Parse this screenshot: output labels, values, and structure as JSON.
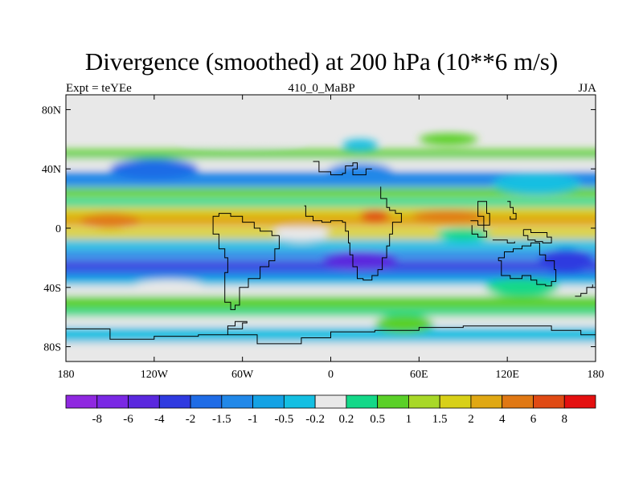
{
  "chart_data": {
    "type": "heatmap",
    "title": "Divergence (smoothed) at 200 hPa (10**6 m/s)",
    "left_string": "Expt = teYEe",
    "center_string": "410_0_MaBP",
    "right_string": "JJA",
    "x_ticks": [
      {
        "value": -180,
        "label": "180"
      },
      {
        "value": -120,
        "label": "120W"
      },
      {
        "value": -60,
        "label": "60W"
      },
      {
        "value": 0,
        "label": "0"
      },
      {
        "value": 60,
        "label": "60E"
      },
      {
        "value": 120,
        "label": "120E"
      },
      {
        "value": 180,
        "label": "180"
      }
    ],
    "y_ticks": [
      {
        "value": 80,
        "label": "80N"
      },
      {
        "value": 40,
        "label": "40N"
      },
      {
        "value": 0,
        "label": "0"
      },
      {
        "value": -40,
        "label": "40S"
      },
      {
        "value": -80,
        "label": "80S"
      }
    ],
    "xlim": [
      -180,
      180
    ],
    "ylim": [
      -90,
      90
    ],
    "colorbar": {
      "colors": [
        "#8f28e0",
        "#7a28e4",
        "#5a28de",
        "#2f3ae0",
        "#1f6ce6",
        "#2188e8",
        "#14a2e4",
        "#14bfe2",
        "#e8e8e8",
        "#14d888",
        "#5ad028",
        "#a8d828",
        "#d8d018",
        "#e0a814",
        "#e07814",
        "#e04a14",
        "#e41010"
      ],
      "labels": [
        "-8",
        "-6",
        "-4",
        "-2",
        "-1.5",
        "-1",
        "-0.5",
        "-0.2",
        "0.2",
        "0.5",
        "1",
        "1.5",
        "2",
        "4",
        "6",
        "8"
      ]
    },
    "bands": [
      {
        "lat": 81,
        "height": 16,
        "color": "#e8e8e8"
      },
      {
        "lat": 50,
        "height": 6,
        "color": "#5ad028"
      },
      {
        "lat": 44,
        "height": 6,
        "color": "#e8e8e8"
      },
      {
        "lat": 33,
        "height": 10,
        "color": "#2188e8"
      },
      {
        "lat": 24,
        "height": 6,
        "color": "#5ad028"
      },
      {
        "lat": 17,
        "height": 5,
        "color": "#14d888"
      },
      {
        "lat": 11,
        "height": 5,
        "color": "#d8d018"
      },
      {
        "lat": 5,
        "height": 8,
        "color": "#e0a814"
      },
      {
        "lat": -4,
        "height": 6,
        "color": "#d8d018"
      },
      {
        "lat": -11,
        "height": 6,
        "color": "#14bfe2"
      },
      {
        "lat": -18,
        "height": 6,
        "color": "#2188e8"
      },
      {
        "lat": -25,
        "height": 6,
        "color": "#2f3ae0"
      },
      {
        "lat": -31,
        "height": 5,
        "color": "#1f6ce6"
      },
      {
        "lat": -36,
        "height": 5,
        "color": "#14bfe2"
      },
      {
        "lat": -42,
        "height": 6,
        "color": "#e8e8e8"
      },
      {
        "lat": -50,
        "height": 8,
        "color": "#5ad028"
      },
      {
        "lat": -57,
        "height": 5,
        "color": "#14d888"
      },
      {
        "lat": -63,
        "height": 6,
        "color": "#e8e8e8"
      },
      {
        "lat": -72,
        "height": 10,
        "color": "#14bfe2"
      },
      {
        "lat": -82,
        "height": 10,
        "color": "#e8e8e8"
      }
    ],
    "blobs": [
      {
        "lon": 20,
        "lat": 38,
        "rlon": 22,
        "rlat": 6,
        "color": "#2188e8"
      },
      {
        "lon": -120,
        "lat": 40,
        "rlon": 30,
        "rlat": 7,
        "color": "#1f6ce6"
      },
      {
        "lon": 140,
        "lat": 30,
        "rlon": 30,
        "rlat": 7,
        "color": "#14bfe2"
      },
      {
        "lon": 30,
        "lat": 8,
        "rlon": 10,
        "rlat": 4,
        "color": "#e04a14"
      },
      {
        "lon": -150,
        "lat": 5,
        "rlon": 20,
        "rlat": 5,
        "color": "#e07814"
      },
      {
        "lon": 80,
        "lat": 8,
        "rlon": 25,
        "rlat": 4,
        "color": "#e07814"
      },
      {
        "lon": 20,
        "lat": -22,
        "rlon": 25,
        "rlat": 6,
        "color": "#5a28de"
      },
      {
        "lon": 160,
        "lat": -22,
        "rlon": 18,
        "rlat": 8,
        "color": "#2f3ae0"
      },
      {
        "lon": -20,
        "lat": -4,
        "rlon": 18,
        "rlat": 5,
        "color": "#e8e8e8"
      },
      {
        "lon": 90,
        "lat": -4,
        "rlon": 18,
        "rlat": 4,
        "color": "#14d888"
      },
      {
        "lon": -110,
        "lat": -40,
        "rlon": 25,
        "rlat": 5,
        "color": "#e8e8e8"
      },
      {
        "lon": 130,
        "lat": -40,
        "rlon": 25,
        "rlat": 6,
        "color": "#14d888"
      },
      {
        "lon": 50,
        "lat": -65,
        "rlon": 20,
        "rlat": 6,
        "color": "#5ad028"
      },
      {
        "lon": -60,
        "lat": 60,
        "rlon": 40,
        "rlat": 5,
        "color": "#e8e8e8"
      },
      {
        "lon": 80,
        "lat": 60,
        "rlon": 20,
        "rlat": 4,
        "color": "#5ad028"
      },
      {
        "lon": 20,
        "lat": 56,
        "rlon": 12,
        "rlat": 4,
        "color": "#14bfe2"
      }
    ],
    "coastlines": [
      [
        [
          -12,
          45
        ],
        [
          -8,
          38
        ],
        [
          0,
          36
        ],
        [
          8,
          37
        ],
        [
          10,
          42
        ],
        [
          15,
          44
        ],
        [
          18,
          40
        ],
        [
          15,
          36
        ],
        [
          22,
          36
        ],
        [
          24,
          40
        ],
        [
          28,
          40
        ]
      ],
      [
        [
          -18,
          15
        ],
        [
          -17,
          8
        ],
        [
          -12,
          5
        ],
        [
          -6,
          4
        ],
        [
          0,
          5
        ],
        [
          8,
          4
        ],
        [
          10,
          -2
        ],
        [
          12,
          -10
        ],
        [
          13,
          -18
        ],
        [
          15,
          -26
        ],
        [
          18,
          -34
        ],
        [
          22,
          -35
        ],
        [
          28,
          -32
        ],
        [
          32,
          -28
        ],
        [
          35,
          -20
        ],
        [
          38,
          -12
        ],
        [
          40,
          -4
        ],
        [
          42,
          4
        ],
        [
          48,
          10
        ],
        [
          44,
          12
        ],
        [
          40,
          14
        ],
        [
          38,
          20
        ],
        [
          34,
          28
        ]
      ],
      [
        [
          -35,
          -5
        ],
        [
          -40,
          -2
        ],
        [
          -48,
          0
        ],
        [
          -52,
          4
        ],
        [
          -60,
          8
        ],
        [
          -68,
          10
        ],
        [
          -76,
          8
        ],
        [
          -80,
          2
        ],
        [
          -80,
          -4
        ],
        [
          -76,
          -14
        ],
        [
          -72,
          -20
        ],
        [
          -70,
          -30
        ],
        [
          -72,
          -40
        ],
        [
          -72,
          -50
        ],
        [
          -68,
          -55
        ],
        [
          -65,
          -52
        ],
        [
          -62,
          -40
        ],
        [
          -56,
          -34
        ],
        [
          -48,
          -26
        ],
        [
          -42,
          -22
        ],
        [
          -38,
          -14
        ],
        [
          -35,
          -5
        ]
      ],
      [
        [
          114,
          -22
        ],
        [
          116,
          -32
        ],
        [
          122,
          -34
        ],
        [
          130,
          -32
        ],
        [
          136,
          -35
        ],
        [
          140,
          -38
        ],
        [
          146,
          -39
        ],
        [
          150,
          -36
        ],
        [
          153,
          -28
        ],
        [
          152,
          -22
        ],
        [
          146,
          -18
        ],
        [
          142,
          -10
        ],
        [
          136,
          -12
        ],
        [
          130,
          -14
        ],
        [
          124,
          -16
        ],
        [
          118,
          -20
        ],
        [
          114,
          -22
        ]
      ],
      [
        [
          95,
          5
        ],
        [
          100,
          2
        ],
        [
          104,
          -2
        ],
        [
          106,
          -6
        ],
        [
          100,
          -4
        ],
        [
          96,
          2
        ]
      ],
      [
        [
          110,
          -8
        ],
        [
          115,
          -8
        ],
        [
          120,
          -10
        ],
        [
          125,
          -9
        ]
      ],
      [
        [
          131,
          -1
        ],
        [
          136,
          -3
        ],
        [
          141,
          -3
        ],
        [
          147,
          -6
        ],
        [
          150,
          -10
        ],
        [
          144,
          -9
        ],
        [
          139,
          -8
        ],
        [
          134,
          -5
        ],
        [
          131,
          -1
        ]
      ],
      [
        [
          100,
          14
        ],
        [
          100,
          8
        ],
        [
          104,
          2
        ],
        [
          108,
          10
        ],
        [
          106,
          18
        ],
        [
          100,
          14
        ]
      ],
      [
        [
          120,
          18
        ],
        [
          122,
          14
        ],
        [
          124,
          10
        ],
        [
          126,
          6
        ],
        [
          122,
          8
        ]
      ],
      [
        [
          -180,
          -68
        ],
        [
          -150,
          -75
        ],
        [
          -120,
          -73
        ],
        [
          -90,
          -72
        ],
        [
          -70,
          -68
        ],
        [
          -60,
          -64
        ],
        [
          -57,
          -63
        ],
        [
          -65,
          -66
        ],
        [
          -70,
          -72
        ],
        [
          -50,
          -78
        ],
        [
          -20,
          -74
        ],
        [
          0,
          -70
        ],
        [
          30,
          -69
        ],
        [
          60,
          -67
        ],
        [
          90,
          -66
        ],
        [
          120,
          -66
        ],
        [
          150,
          -69
        ],
        [
          170,
          -72
        ],
        [
          180,
          -74
        ]
      ],
      [
        [
          166,
          -46
        ],
        [
          170,
          -44
        ],
        [
          174,
          -40
        ],
        [
          178,
          -38
        ]
      ]
    ]
  }
}
